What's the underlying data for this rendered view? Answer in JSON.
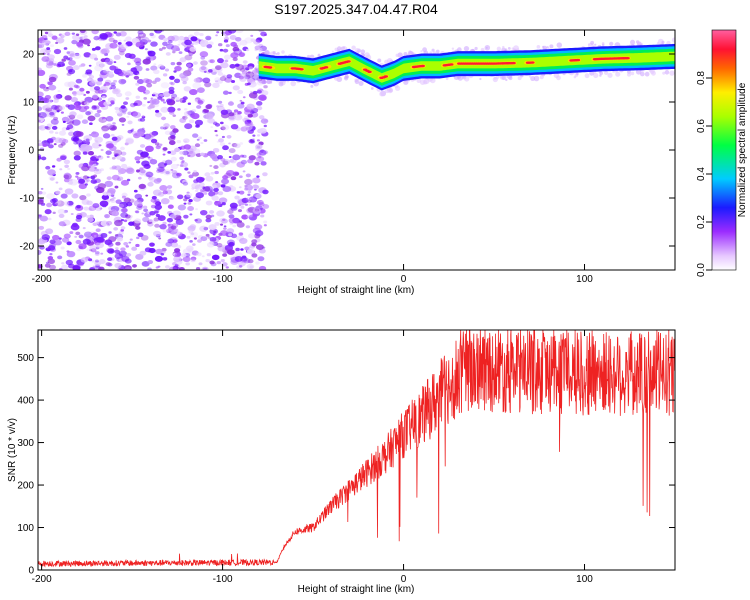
{
  "title": "S197.2025.347.04.47.R04",
  "colors": {
    "snr_line": "#ee2222",
    "axes": "#000000"
  },
  "chart_data": [
    {
      "type": "heatmap",
      "name": "spectrogram",
      "xlabel": "Height of straight line (km)",
      "ylabel": "Frequency (Hz)",
      "xlim": [
        -202,
        150
      ],
      "ylim": [
        -25,
        25
      ],
      "xticks": [
        -200,
        -100,
        0,
        100
      ],
      "xtick_labels": [
        "-200",
        "-100",
        "0",
        "100"
      ],
      "yticks": [
        20,
        10,
        0,
        -10,
        -20
      ],
      "ytick_labels": [
        "20",
        "10",
        "0",
        "-10",
        "-20"
      ],
      "noise_region_x": [
        -202,
        -76
      ],
      "signal_start_x": -80,
      "signal_frequency_track": [
        {
          "x": -80,
          "f": 17.5
        },
        {
          "x": -70,
          "f": 17.0
        },
        {
          "x": -60,
          "f": 17.0
        },
        {
          "x": -50,
          "f": 16.5
        },
        {
          "x": -40,
          "f": 17.5
        },
        {
          "x": -30,
          "f": 18.5
        },
        {
          "x": -20,
          "f": 16.5
        },
        {
          "x": -12,
          "f": 15.0
        },
        {
          "x": -5,
          "f": 16.0
        },
        {
          "x": 0,
          "f": 17.0
        },
        {
          "x": 10,
          "f": 17.5
        },
        {
          "x": 20,
          "f": 17.5
        },
        {
          "x": 30,
          "f": 18.0
        },
        {
          "x": 50,
          "f": 18.0
        },
        {
          "x": 70,
          "f": 18.2
        },
        {
          "x": 90,
          "f": 18.6
        },
        {
          "x": 110,
          "f": 19.0
        },
        {
          "x": 130,
          "f": 19.2
        },
        {
          "x": 150,
          "f": 19.5
        }
      ]
    },
    {
      "type": "colorbar",
      "label": "Normalized spectral amplitude",
      "range": [
        0,
        1
      ],
      "ticks": [
        0.0,
        0.2,
        0.4,
        0.6,
        0.8
      ],
      "tick_labels": [
        "0.0",
        "0.2",
        "0.4",
        "0.6",
        "0.8"
      ],
      "colormap": "rainbow (white → magenta → blue → cyan → green → yellow → red → pink)"
    },
    {
      "type": "line",
      "name": "snr",
      "xlabel": "Height of straight line (km)",
      "ylabel": "SNR (10 * v/v)",
      "xlim": [
        -202,
        150
      ],
      "ylim": [
        0,
        565
      ],
      "xticks": [
        -200,
        -100,
        0,
        100
      ],
      "xtick_labels": [
        "-200",
        "-100",
        "0",
        "100"
      ],
      "yticks": [
        0,
        100,
        200,
        300,
        400,
        500
      ],
      "ytick_labels": [
        "0",
        "100",
        "200",
        "300",
        "400",
        "500"
      ],
      "envelope": [
        {
          "x": -202,
          "y": 15
        },
        {
          "x": -70,
          "y": 18
        },
        {
          "x": -66,
          "y": 55
        },
        {
          "x": -60,
          "y": 90
        },
        {
          "x": -50,
          "y": 100
        },
        {
          "x": -40,
          "y": 150
        },
        {
          "x": -30,
          "y": 190
        },
        {
          "x": -20,
          "y": 230
        },
        {
          "x": -10,
          "y": 270
        },
        {
          "x": 0,
          "y": 320
        },
        {
          "x": 10,
          "y": 360
        },
        {
          "x": 20,
          "y": 410
        },
        {
          "x": 30,
          "y": 460
        },
        {
          "x": 40,
          "y": 480
        },
        {
          "x": 50,
          "y": 475
        },
        {
          "x": 60,
          "y": 470
        },
        {
          "x": 80,
          "y": 470
        },
        {
          "x": 100,
          "y": 465
        },
        {
          "x": 120,
          "y": 460
        },
        {
          "x": 150,
          "y": 465
        }
      ]
    }
  ]
}
